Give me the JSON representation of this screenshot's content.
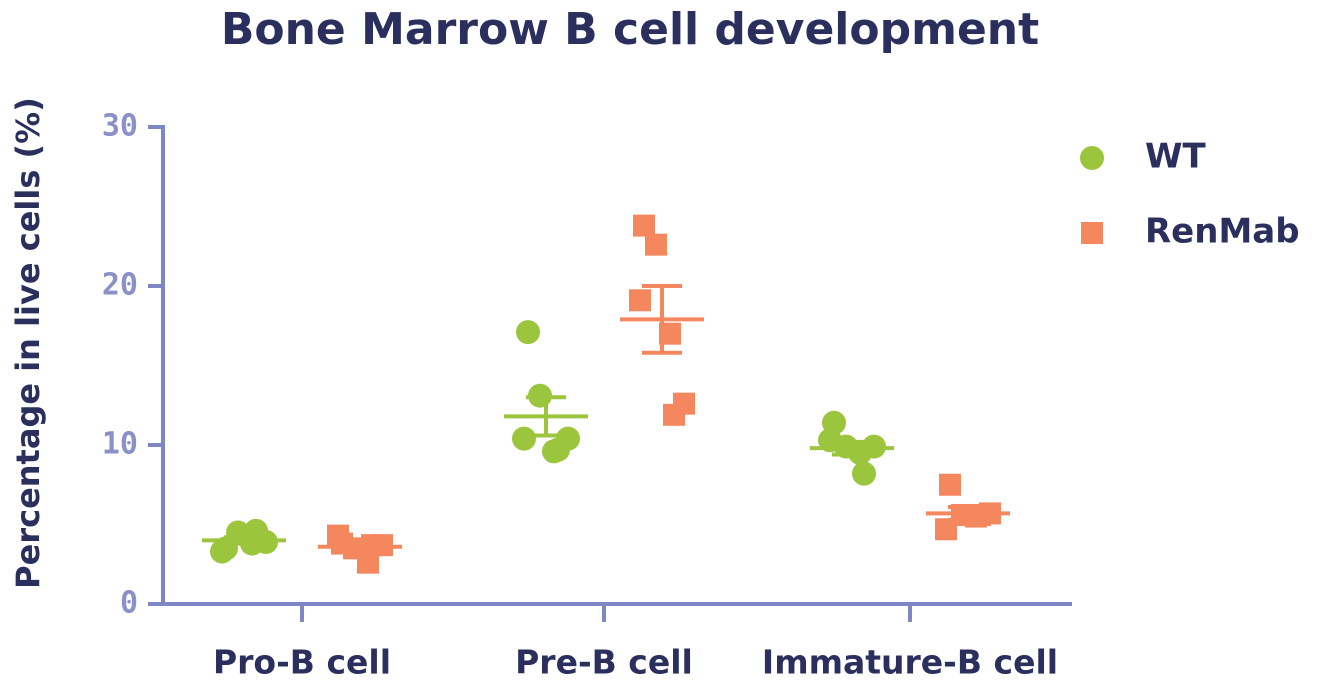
{
  "chart_data": {
    "type": "dot",
    "title": "Bone Marrow B cell development",
    "ylabel": "Percentage in live cells (%)",
    "categories": [
      "Pro-B cell",
      "Pre-B cell",
      "Immature-B cell"
    ],
    "ylim": [
      0,
      30
    ],
    "yticks": [
      0,
      10,
      20,
      30
    ],
    "series": [
      {
        "name": "WT",
        "color": "#9bc53d",
        "marker": "circle",
        "values": [
          [
            3.5,
            4.5,
            3.3,
            3.8,
            4.6,
            3.9
          ],
          [
            17.1,
            13.1,
            10.4,
            9.6,
            9.7,
            10.4
          ],
          [
            11.4,
            9.9,
            10.3,
            9.5,
            8.2,
            9.9
          ]
        ],
        "means": [
          4.0,
          11.8,
          9.8
        ],
        "sem": [
          0.2,
          1.2,
          0.4
        ]
      },
      {
        "name": "RenMab",
        "color": "#f5875f",
        "marker": "square",
        "values": [
          [
            3.8,
            3.5,
            4.3,
            2.6,
            3.7,
            3.7
          ],
          [
            23.8,
            22.6,
            19.1,
            17.0,
            11.9,
            12.6
          ],
          [
            7.5,
            5.6,
            4.7,
            5.5,
            5.6,
            5.7
          ]
        ],
        "means": [
          3.6,
          17.9,
          5.7
        ],
        "sem": [
          0.2,
          2.1,
          0.4
        ]
      }
    ]
  }
}
